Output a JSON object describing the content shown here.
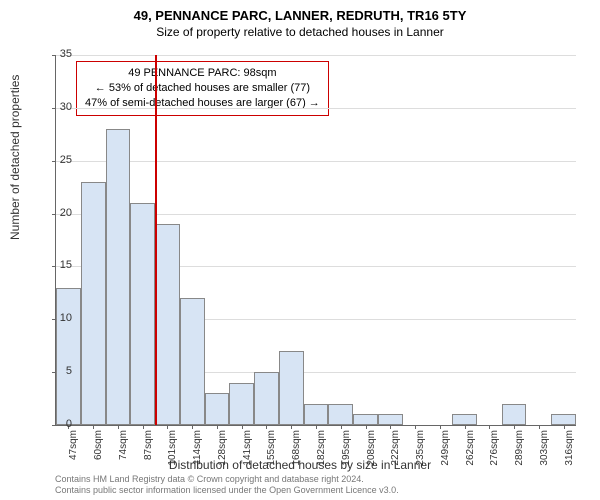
{
  "title": "49, PENNANCE PARC, LANNER, REDRUTH, TR16 5TY",
  "subtitle": "Size of property relative to detached houses in Lanner",
  "ylabel": "Number of detached properties",
  "xlabel": "Distribution of detached houses by size in Lanner",
  "chart": {
    "type": "histogram",
    "ylim": [
      0,
      35
    ],
    "ytick_step": 5,
    "xticks": [
      "47sqm",
      "60sqm",
      "74sqm",
      "87sqm",
      "101sqm",
      "114sqm",
      "128sqm",
      "141sqm",
      "155sqm",
      "168sqm",
      "182sqm",
      "195sqm",
      "208sqm",
      "222sqm",
      "235sqm",
      "249sqm",
      "262sqm",
      "276sqm",
      "289sqm",
      "303sqm",
      "316sqm"
    ],
    "values": [
      13,
      23,
      28,
      21,
      19,
      12,
      3,
      4,
      5,
      7,
      2,
      2,
      1,
      1,
      0,
      0,
      1,
      0,
      2,
      0,
      1
    ],
    "bar_fill": "#d7e4f4",
    "bar_border": "#888888",
    "grid_color": "#dddddd",
    "background": "#ffffff",
    "marker_index": 4,
    "marker_color": "#cc0000"
  },
  "infobox": {
    "line1": "49 PENNANCE PARC: 98sqm",
    "line2": "← 53% of detached houses are smaller (77)",
    "line3": "47% of semi-detached houses are larger (67) →",
    "border_color": "#cc0000"
  },
  "footer": {
    "line1": "Contains HM Land Registry data © Crown copyright and database right 2024.",
    "line2": "Contains public sector information licensed under the Open Government Licence v3.0."
  }
}
